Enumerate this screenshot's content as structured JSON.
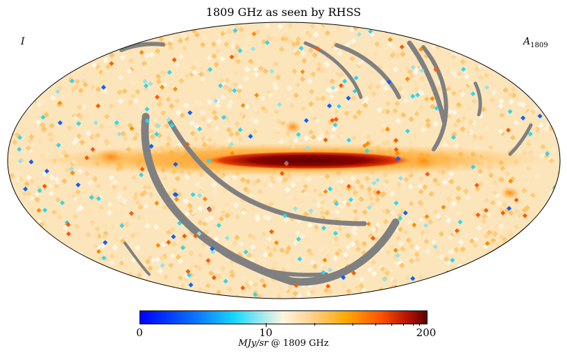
{
  "title": "1809 GHz as seen by RHSS",
  "corner_left": "I",
  "corner_right": {
    "symbol": "A",
    "subscript": "1809"
  },
  "colorbar": {
    "min_label": "0",
    "mid_label": "10",
    "max_label": "200",
    "unit_italic": "MJy/sr",
    "unit_rest": " @ 1809 GHz",
    "min": 0,
    "mid": 10,
    "max": 200
  },
  "colors": {
    "masked": "#808080",
    "background": "#fde7bf",
    "band_core": "#6a0000",
    "band_edge": "#ff7a10",
    "low_cyan": "#2fd6f0",
    "low_blue": "#0a60ff"
  }
}
